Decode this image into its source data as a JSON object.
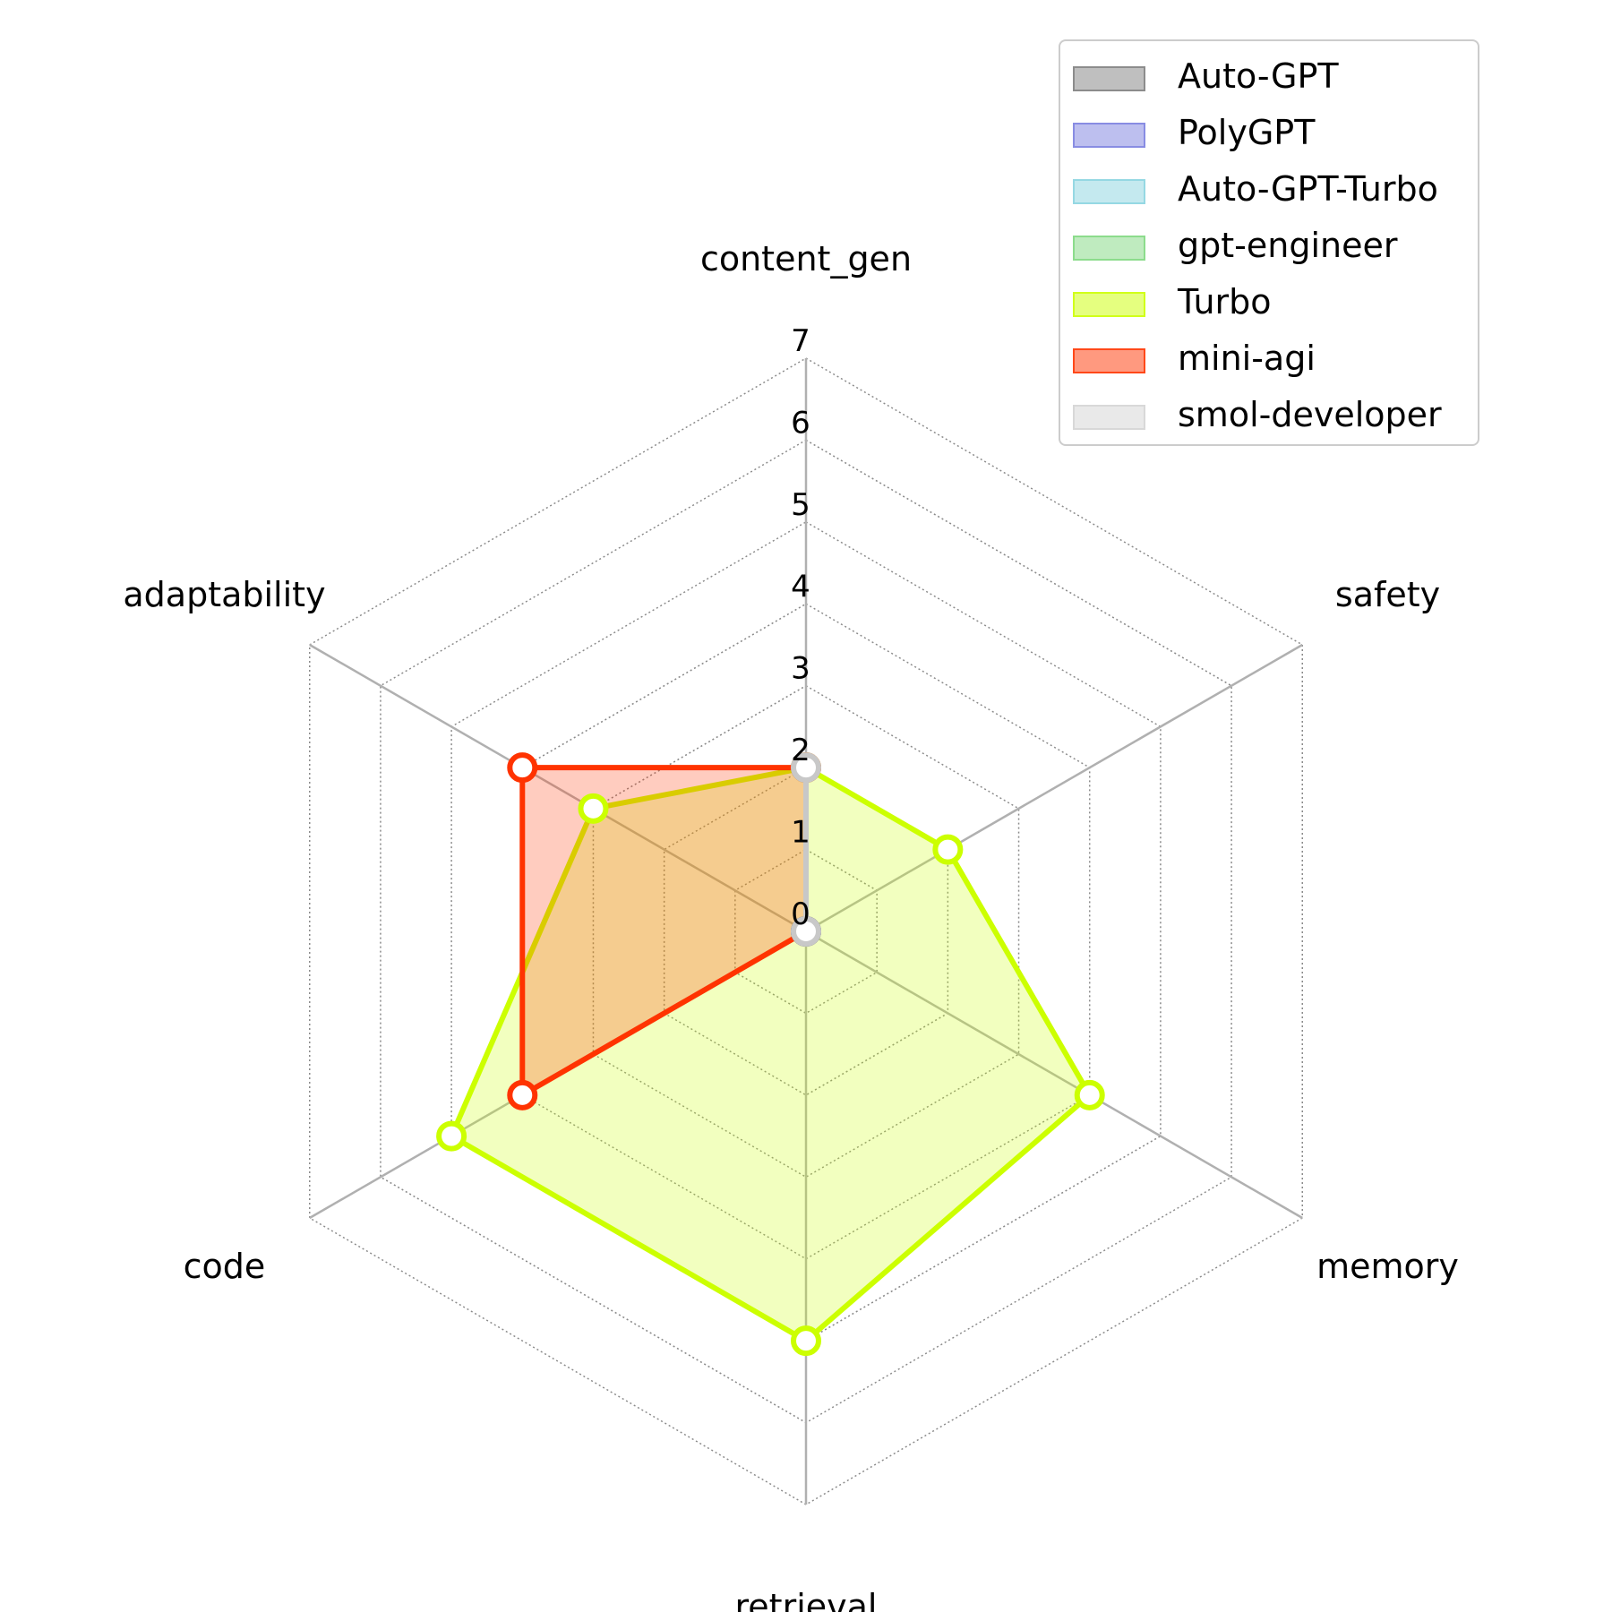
{
  "chart_data": {
    "type": "radar",
    "axes": [
      "content_gen",
      "safety",
      "memory",
      "retrieval",
      "code",
      "adaptability"
    ],
    "r_ticks": [
      0,
      1,
      2,
      3,
      4,
      5,
      6,
      7
    ],
    "r_max": 7,
    "grid": true,
    "legend_position": "top-right",
    "series": [
      {
        "name": "Auto-GPT",
        "values": [
          2,
          0,
          0,
          0,
          0,
          0
        ],
        "color": "#808080"
      },
      {
        "name": "PolyGPT",
        "values": [
          0,
          0,
          0,
          0,
          0,
          0
        ],
        "color": "#7b7fe0"
      },
      {
        "name": "Auto-GPT-Turbo",
        "values": [
          0,
          0,
          0,
          0,
          0,
          0
        ],
        "color": "#89d3e0"
      },
      {
        "name": "gpt-engineer",
        "values": [
          0,
          0,
          0,
          0,
          0,
          0
        ],
        "color": "#7fd880"
      },
      {
        "name": "Turbo",
        "values": [
          2,
          2,
          4,
          5,
          5,
          3
        ],
        "color": "#ccff00"
      },
      {
        "name": "mini-agi",
        "values": [
          2,
          0,
          0,
          0,
          4,
          4
        ],
        "color": "#ff3300"
      },
      {
        "name": "smol-developer",
        "values": [
          0,
          0,
          0,
          0,
          0,
          0
        ],
        "color": "#d3d3d3"
      }
    ]
  }
}
